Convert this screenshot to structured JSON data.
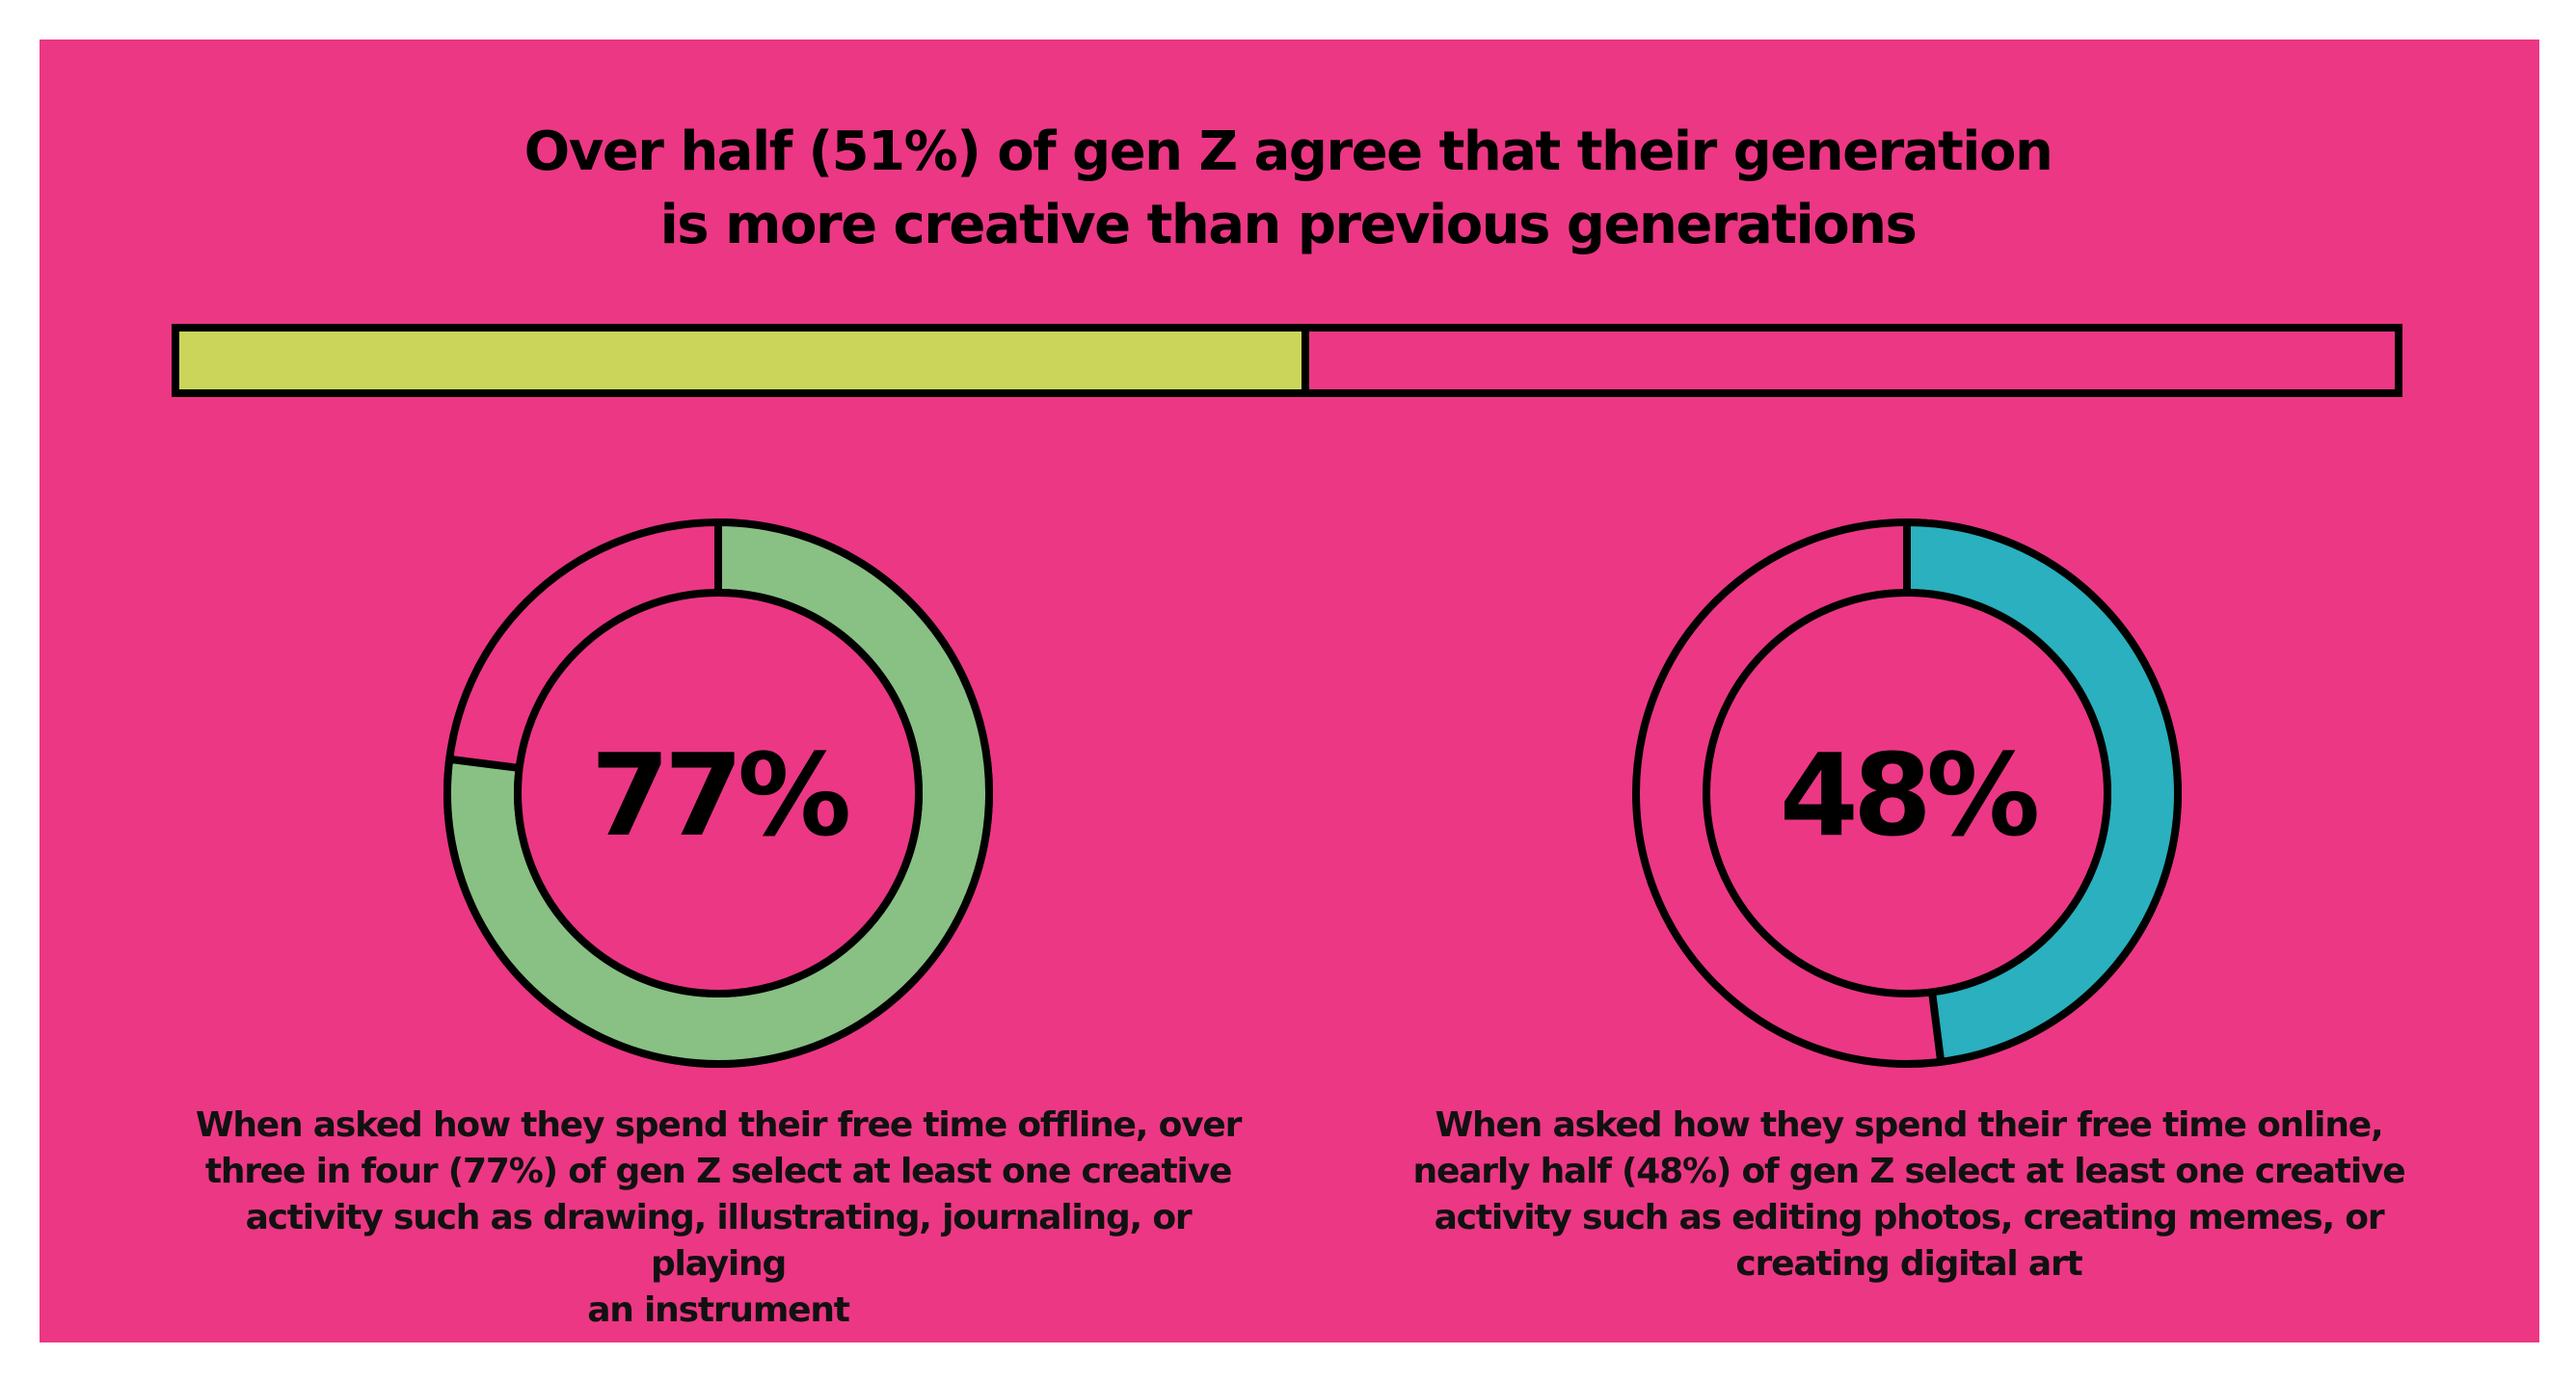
{
  "headline": {
    "line1": "Over half (51%) of gen Z agree that their generation",
    "line2": "is more creative than previous generations"
  },
  "colors": {
    "background": "#ec3784",
    "bar_fill": "#cbd55a",
    "offline_donut": "#89c083",
    "online_donut": "#2ab0be",
    "outline": "#000000"
  },
  "chart_data": [
    {
      "type": "bar",
      "orientation": "horizontal",
      "title": "Over half (51%) of gen Z agree that their generation is more creative than previous generations",
      "value": 51,
      "max": 100,
      "unit": "%"
    },
    {
      "type": "pie",
      "style": "donut",
      "value": 77,
      "max": 100,
      "label": "77%",
      "caption": [
        "When asked how they spend their free time offline, over",
        "three in four (77%) of gen Z select at least one creative",
        "activity such as drawing, illustrating, journaling, or playing",
        "an instrument"
      ]
    },
    {
      "type": "pie",
      "style": "donut",
      "value": 48,
      "max": 100,
      "label": "48%",
      "caption": [
        "When asked how they spend their free time online,",
        "nearly half (48%) of gen Z select at least one creative",
        "activity such as editing photos, creating memes, or",
        "creating digital art"
      ]
    }
  ]
}
